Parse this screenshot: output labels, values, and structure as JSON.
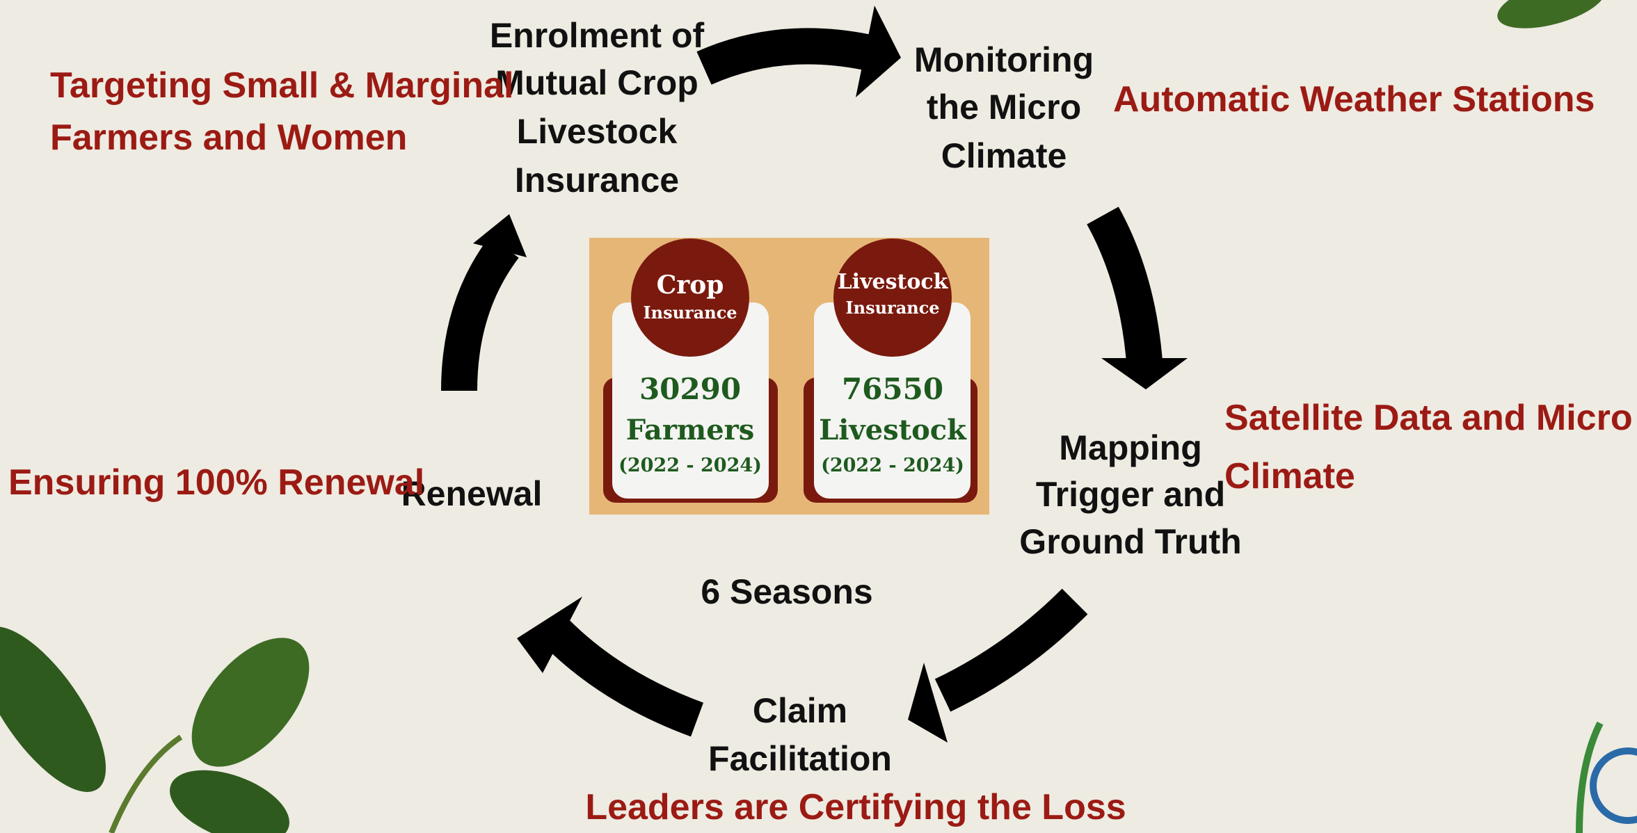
{
  "steps": [
    {
      "label": [
        "Enrolment of",
        "Mutual Crop",
        "Livestock",
        "Insurance"
      ]
    },
    {
      "label": [
        "Monitoring",
        "the Micro",
        "Climate"
      ]
    },
    {
      "label": [
        "Mapping",
        "Trigger and",
        "Ground Truth"
      ]
    },
    {
      "label": [
        "Claim",
        "Facilitation"
      ]
    },
    {
      "label": [
        "Renewal"
      ]
    }
  ],
  "annotations": [
    {
      "lines": [
        "Targeting Small & Marginal",
        "Farmers and Women"
      ]
    },
    {
      "lines": [
        "Automatic Weather Stations"
      ]
    },
    {
      "lines": [
        "Satellite Data and Micro",
        "Climate"
      ]
    },
    {
      "lines": [
        "Leaders are Certifying the Loss"
      ]
    },
    {
      "lines": [
        "Ensuring 100% Renewal"
      ]
    }
  ],
  "cycle_label": "6 Seasons",
  "cards": [
    {
      "title": "Crop",
      "subtitle": "Insurance",
      "count": 30290,
      "unit": "Farmers",
      "period": "(2022 - 2024)"
    },
    {
      "title": "Livestock",
      "subtitle": "Insurance",
      "count": 76550,
      "unit": "Livestock",
      "period": "(2022 - 2024)"
    }
  ]
}
